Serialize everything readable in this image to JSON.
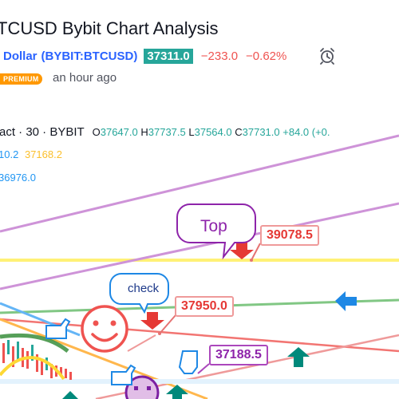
{
  "header": {
    "title": "TCUSD Bybit Chart Analysis",
    "name": "Dollar",
    "symbol": "(BYBIT:BTCUSD)",
    "price": "37311.0",
    "change": "−233.0",
    "change_pct": "−0.62%",
    "premium_label": "PREMIUM",
    "time_ago": "an hour ago"
  },
  "legend": {
    "contract": "ract · 30 · BYBIT",
    "open": "37647.0",
    "high": "37737.5",
    "low": "37564.0",
    "close": "37731.0",
    "delta": "+84.0 (+0.",
    "ind1_a": "10.2",
    "ind1_b": "37168.2",
    "ind2": "36976.0"
  },
  "annotations": {
    "top_bubble": "Top",
    "check_bubble": "check",
    "price_top": "39078.5",
    "price_mid": "37950.0",
    "price_low": "37188.5"
  },
  "colors": {
    "up": "#26a69a",
    "down": "#ef5350",
    "accent": "#2962ff",
    "premium": "#ff9800",
    "purple_line": "#ce93d8",
    "yellow_line": "#ffeb3b"
  }
}
